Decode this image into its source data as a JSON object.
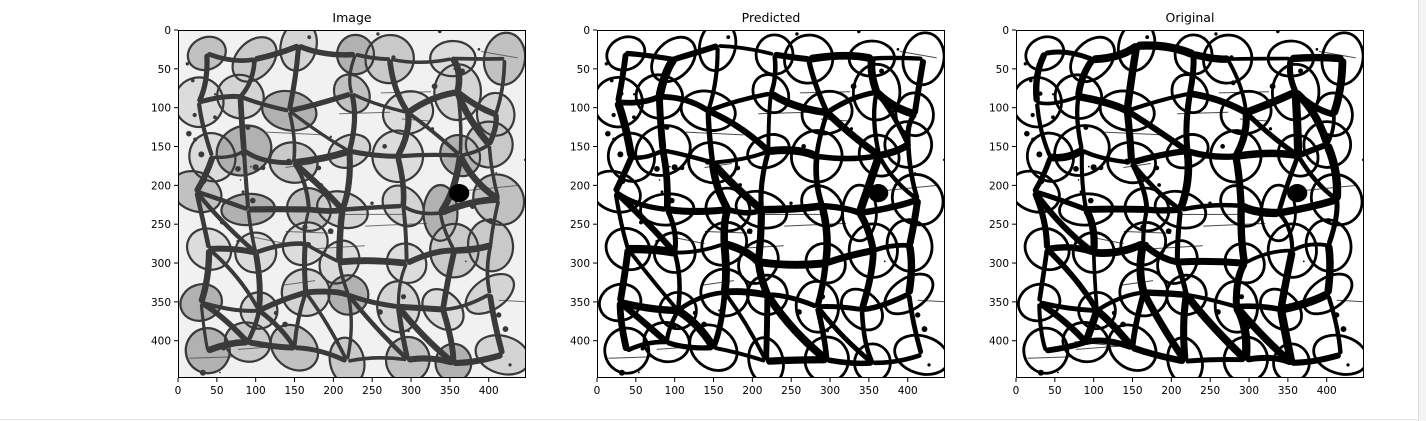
{
  "figure": {
    "panels": [
      {
        "title": "Image",
        "colormap": "gray",
        "palette": {
          "background": "#f1f1f1",
          "grains": [
            "#cfcfcf",
            "#b8b8b8",
            "#a6a6a6",
            "#d8d8d8",
            "#c2c2c2"
          ],
          "boundary": "#3a3a3a",
          "void": "#000000"
        }
      },
      {
        "title": "Predicted",
        "colormap": "binary",
        "palette": {
          "background": "#ffffff",
          "boundary": "#000000",
          "void": "#000000"
        }
      },
      {
        "title": "Original",
        "colormap": "binary",
        "palette": {
          "background": "#ffffff",
          "boundary": "#000000",
          "void": "#000000"
        }
      }
    ],
    "x_ticks": [
      "0",
      "50",
      "100",
      "150",
      "200",
      "250",
      "300",
      "350",
      "400"
    ],
    "y_ticks": [
      "0",
      "50",
      "100",
      "150",
      "200",
      "250",
      "300",
      "350",
      "400"
    ]
  },
  "chart_data": [
    {
      "type": "heatmap",
      "title": "Image",
      "xlim": [
        0,
        448
      ],
      "ylim": [
        448,
        0
      ]
    },
    {
      "type": "heatmap",
      "title": "Predicted",
      "xlim": [
        0,
        448
      ],
      "ylim": [
        448,
        0
      ]
    },
    {
      "type": "heatmap",
      "title": "Original",
      "xlim": [
        0,
        448
      ],
      "ylim": [
        448,
        0
      ]
    }
  ]
}
